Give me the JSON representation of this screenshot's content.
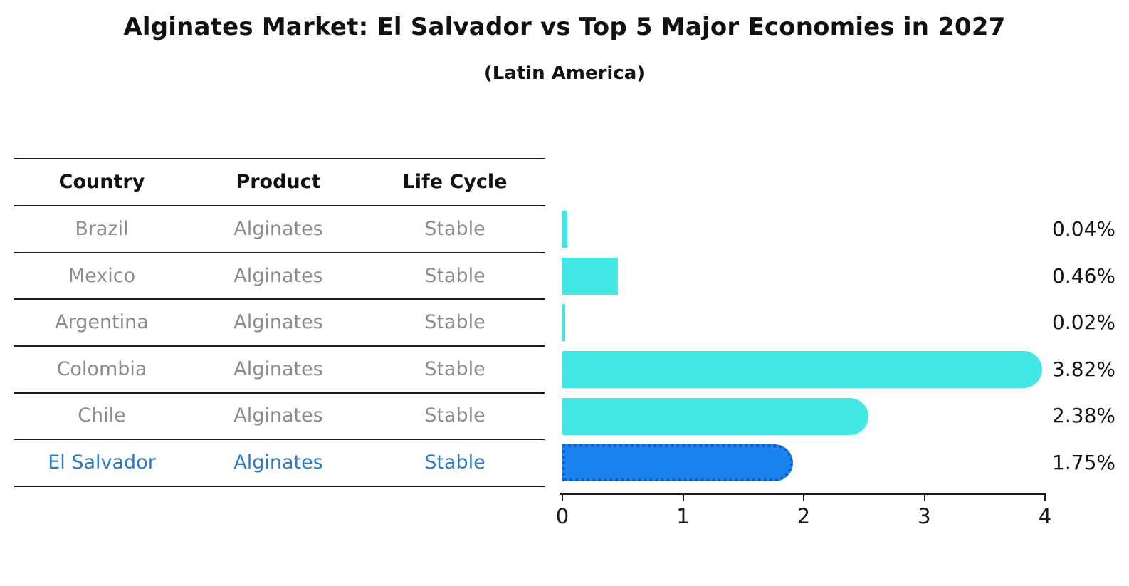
{
  "title": "Alginates Market: El Salvador vs Top 5 Major Economies in 2027",
  "subtitle": "(Latin America)",
  "table": {
    "headers": [
      "Country",
      "Product",
      "Life Cycle"
    ],
    "rows": [
      {
        "country": "Brazil",
        "product": "Alginates",
        "life_cycle": "Stable"
      },
      {
        "country": "Mexico",
        "product": "Alginates",
        "life_cycle": "Stable"
      },
      {
        "country": "Argentina",
        "product": "Alginates",
        "life_cycle": "Stable"
      },
      {
        "country": "Colombia",
        "product": "Alginates",
        "life_cycle": "Stable"
      },
      {
        "country": "Chile",
        "product": "Alginates",
        "life_cycle": "Stable"
      },
      {
        "country": "El Salvador",
        "product": "Alginates",
        "life_cycle": "Stable"
      }
    ],
    "highlight_row": "El Salvador"
  },
  "chart_data": {
    "type": "bar",
    "orientation": "horizontal",
    "title": "Alginates Market: El Salvador vs Top 5 Major Economies in 2027",
    "subtitle": "(Latin America)",
    "categories": [
      "Brazil",
      "Mexico",
      "Argentina",
      "Colombia",
      "Chile",
      "El Salvador"
    ],
    "values": [
      0.04,
      0.46,
      0.02,
      3.82,
      2.38,
      1.75
    ],
    "value_labels": [
      "0.04%",
      "0.46%",
      "0.02%",
      "3.82%",
      "2.38%",
      "1.75%"
    ],
    "highlight_index": 5,
    "x_ticks": [
      "0",
      "1",
      "2",
      "3",
      "4"
    ],
    "xlim": [
      0,
      4
    ],
    "grid": false,
    "legend": false,
    "colors": {
      "bar": "#43e7e4",
      "highlight_bar": "#1c82ee",
      "highlight_bar_border": "#0b5cc9",
      "highlight_text": "#2b7bcd",
      "table_text": "#8c8c8c",
      "header_text": "#111111",
      "value_label_text": "#111111"
    }
  }
}
